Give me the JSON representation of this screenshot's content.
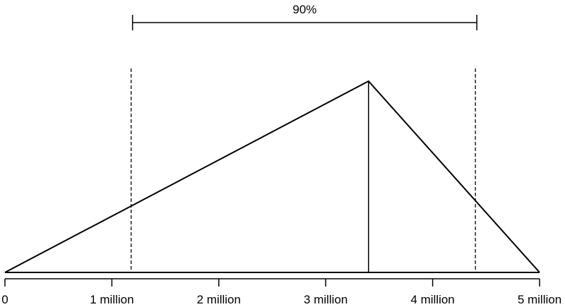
{
  "chart_data": {
    "type": "line",
    "title": "",
    "xlabel": "",
    "ylabel": "",
    "xlim": [
      0,
      5000000
    ],
    "x_ticks": [
      0,
      1000000,
      2000000,
      3000000,
      4000000,
      5000000
    ],
    "x_tick_labels": [
      "0",
      "1 million",
      "2 million",
      "3 million",
      "4 million",
      "5 million"
    ],
    "series": [
      {
        "x": [
          0,
          3400000,
          5000000
        ],
        "y": [
          0,
          1,
          0
        ]
      }
    ],
    "mode_x": 3400000,
    "interval": {
      "label": "90%",
      "lower": 1180000,
      "upper": 4400000
    },
    "grid": false,
    "legend": "none"
  }
}
